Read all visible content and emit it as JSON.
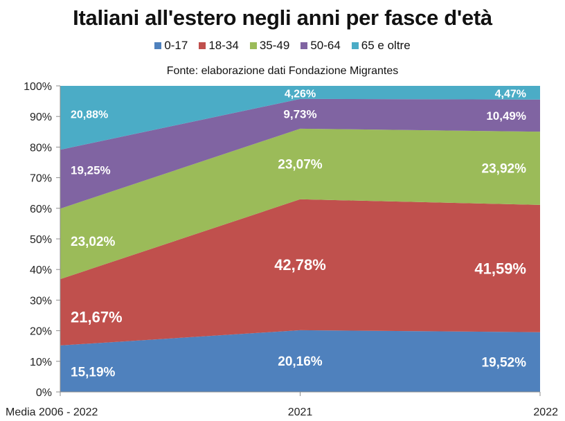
{
  "chart_data": {
    "type": "area",
    "stacked": true,
    "percent": true,
    "title": "Italiani all'estero negli anni per fasce d'età",
    "subtitle": "Fonte: elaborazione dati Fondazione Migrantes",
    "xlabel": "",
    "ylabel": "",
    "ylim": [
      0,
      100
    ],
    "yticks": [
      "0%",
      "10%",
      "20%",
      "30%",
      "40%",
      "50%",
      "60%",
      "70%",
      "80%",
      "90%",
      "100%"
    ],
    "categories": [
      "Media 2006 - 2022",
      "2021",
      "2022"
    ],
    "legend_position": "top",
    "grid": false,
    "series": [
      {
        "name": "0-17",
        "color": "#4F81BD",
        "values": [
          15.19,
          20.16,
          19.52
        ],
        "labels": [
          "15,19%",
          "20,16%",
          "19,52%"
        ]
      },
      {
        "name": "18-34",
        "color": "#C0504D",
        "values": [
          21.67,
          42.78,
          41.59
        ],
        "labels": [
          "21,67%",
          "42,78%",
          "41,59%"
        ]
      },
      {
        "name": "35-49",
        "color": "#9BBB59",
        "values": [
          23.02,
          23.07,
          23.92
        ],
        "labels": [
          "23,02%",
          "23,07%",
          "23,92%"
        ]
      },
      {
        "name": "50-64",
        "color": "#8064A2",
        "values": [
          19.25,
          9.73,
          10.49
        ],
        "labels": [
          "19,25%",
          "9,73%",
          "10,49%"
        ]
      },
      {
        "name": "65 e oltre",
        "color": "#4BACC6",
        "values": [
          20.88,
          4.26,
          4.47
        ],
        "labels": [
          "20,88%",
          "4,26%",
          "4,47%"
        ]
      }
    ]
  }
}
